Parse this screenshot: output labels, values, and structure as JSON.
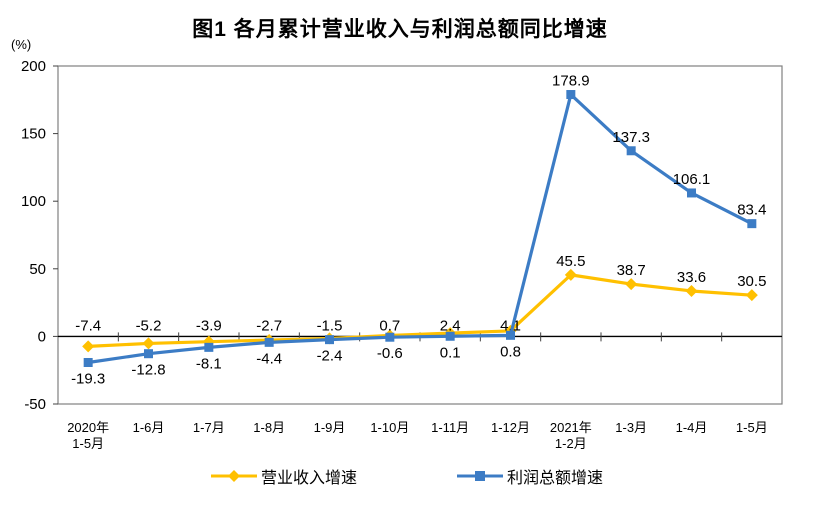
{
  "figure": {
    "title": "图1 各月累计营业收入与利润总额同比增速",
    "unit_label": "(%)"
  },
  "legend": {
    "items": [
      {
        "label": "营业收入增速",
        "color": "#FFC000",
        "marker": "diamond"
      },
      {
        "label": "利润总额增速",
        "color": "#3C7CC5",
        "marker": "square"
      }
    ]
  },
  "chart_data": {
    "type": "line",
    "title": "图1 各月累计营业收入与利润总额同比增速",
    "ylabel": "(%)",
    "xlabel": "",
    "ylim": [
      -50,
      200
    ],
    "yticks": [
      200,
      150,
      100,
      50,
      0,
      -50
    ],
    "grid": false,
    "legend_position": "bottom",
    "axis_color": "#000000",
    "frame_color": "#808080",
    "categories": [
      "2020年\n1-5月",
      "1-6月",
      "1-7月",
      "1-8月",
      "1-9月",
      "1-10月",
      "1-11月",
      "1-12月",
      "2021年\n1-2月",
      "1-3月",
      "1-4月",
      "1-5月"
    ],
    "series": [
      {
        "name": "营业收入增速",
        "color": "#FFC000",
        "marker": "diamond",
        "values": [
          -7.4,
          -5.2,
          -3.9,
          -2.7,
          -1.5,
          0.7,
          2.4,
          4.1,
          45.5,
          38.7,
          33.6,
          30.5
        ]
      },
      {
        "name": "利润总额增速",
        "color": "#3C7CC5",
        "marker": "square",
        "values": [
          -19.3,
          -12.8,
          -8.1,
          -4.4,
          -2.4,
          -0.6,
          0.1,
          0.8,
          178.9,
          137.3,
          106.1,
          83.4
        ]
      }
    ]
  }
}
